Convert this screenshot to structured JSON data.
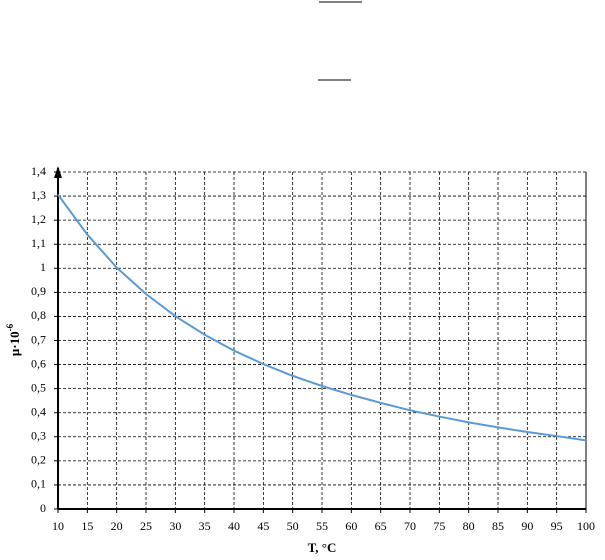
{
  "chart_data": {
    "type": "line",
    "x_label": "T, °C",
    "y_label": {
      "base": "μ·10",
      "exponent": "-6"
    },
    "x": [
      10,
      15,
      20,
      25,
      30,
      35,
      40,
      45,
      50,
      55,
      60,
      65,
      70,
      75,
      80,
      85,
      90,
      95,
      100
    ],
    "series": [
      {
        "color": "#5b9bd5",
        "values": [
          1.306,
          1.14,
          1.003,
          0.893,
          0.801,
          0.724,
          0.658,
          0.602,
          0.553,
          0.511,
          0.474,
          0.441,
          0.41,
          0.384,
          0.36,
          0.339,
          0.32,
          0.303,
          0.285
        ]
      }
    ],
    "xlim": [
      10,
      100
    ],
    "xticks": [
      10,
      15,
      20,
      25,
      30,
      35,
      40,
      45,
      50,
      55,
      60,
      65,
      70,
      75,
      80,
      85,
      90,
      95,
      100
    ],
    "ylim": [
      0,
      1.4
    ],
    "yticks": [
      0,
      {
        "value": 0.1,
        "label": "0,1"
      },
      {
        "value": 0.2,
        "label": "0,2"
      },
      {
        "value": 0.3,
        "label": "0,3"
      },
      {
        "value": 0.4,
        "label": "0,4"
      },
      {
        "value": 0.5,
        "label": "0,5"
      },
      {
        "value": 0.6,
        "label": "0,6"
      },
      {
        "value": 0.7,
        "label": "0,7"
      },
      {
        "value": 0.8,
        "label": "0,8"
      },
      {
        "value": 0.9,
        "label": "0,9"
      },
      1,
      {
        "value": 1.1,
        "label": "1,1"
      },
      {
        "value": 1.2,
        "label": "1,2"
      },
      {
        "value": 1.3,
        "label": "1,3"
      },
      {
        "value": 1.4,
        "label": "1,4"
      }
    ],
    "grid": true
  }
}
